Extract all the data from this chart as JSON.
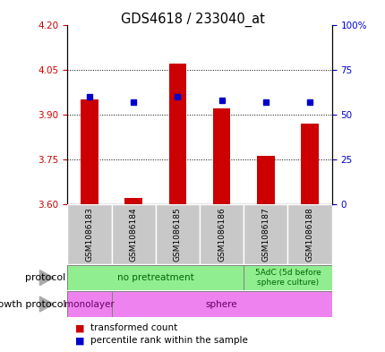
{
  "title": "GDS4618 / 233040_at",
  "samples": [
    "GSM1086183",
    "GSM1086184",
    "GSM1086185",
    "GSM1086186",
    "GSM1086187",
    "GSM1086188"
  ],
  "red_values": [
    3.95,
    3.62,
    4.07,
    3.92,
    3.76,
    3.87
  ],
  "blue_values": [
    60,
    57,
    60,
    58,
    57,
    57
  ],
  "ylim_left": [
    3.6,
    4.2
  ],
  "ylim_right": [
    0,
    100
  ],
  "yticks_left": [
    3.6,
    3.75,
    3.9,
    4.05,
    4.2
  ],
  "yticks_right": [
    0,
    25,
    50,
    75,
    100
  ],
  "ytick_right_labels": [
    "0",
    "25",
    "50",
    "75",
    "100%"
  ],
  "grid_lines": [
    3.75,
    3.9,
    4.05
  ],
  "protocol_label": "no pretreatment",
  "protocol_label2": "5AdC (5d before\nsphere culture)",
  "protocol_n_samples": 4,
  "growth_label1": "monolayer",
  "growth_label2": "sphere",
  "growth_n_mono": 1,
  "bar_color": "#cc0000",
  "dot_color": "#0000cc",
  "bg_color": "#ffffff",
  "plot_bg": "#ffffff",
  "sample_bg": "#c8c8c8",
  "protocol_color": "#90ee90",
  "growth_color": "#ee82ee",
  "axis_color_left": "#cc0000",
  "axis_color_right": "#0000cc",
  "legend_items": [
    "transformed count",
    "percentile rank within the sample"
  ],
  "legend_colors": [
    "#cc0000",
    "#0000cc"
  ],
  "bar_width": 0.4
}
